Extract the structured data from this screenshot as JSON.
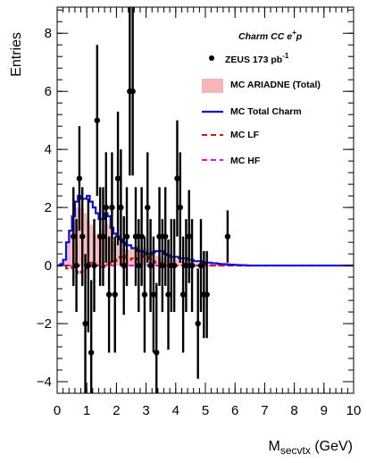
{
  "chart_data": {
    "type": "histogram",
    "xlabel": "M",
    "xlabel_sub": "secvtx",
    "xlabel_unit": " (GeV)",
    "ylabel": "Entries",
    "xlim": [
      0,
      10
    ],
    "ylim": [
      -4.4,
      8.9
    ],
    "x_ticks": [
      0,
      1,
      2,
      3,
      4,
      5,
      6,
      7,
      8,
      9,
      10
    ],
    "y_ticks": [
      -4,
      -2,
      0,
      2,
      4,
      6,
      8
    ],
    "legend_title": "Charm CC e",
    "legend_title_sup": "+",
    "legend_title_end": "p",
    "legend_placement": "top-right",
    "bin_width": 0.1,
    "data_label": "ZEUS 173 pb",
    "data_label_sup": "-1",
    "data_points": [
      {
        "x": 0.55,
        "y": 1,
        "err": 1.7
      },
      {
        "x": 0.65,
        "y": 0,
        "err": 1.6
      },
      {
        "x": 0.75,
        "y": 3,
        "err": 1.8
      },
      {
        "x": 0.85,
        "y": 1,
        "err": 1.7
      },
      {
        "x": 0.95,
        "y": -2,
        "err": 2.4
      },
      {
        "x": 1.05,
        "y": 0,
        "err": 2.3
      },
      {
        "x": 1.15,
        "y": -3,
        "err": 2.5
      },
      {
        "x": 1.25,
        "y": 0,
        "err": 1.6
      },
      {
        "x": 1.35,
        "y": 5,
        "err": 2.6
      },
      {
        "x": 1.45,
        "y": 1,
        "err": 1.7
      },
      {
        "x": 1.55,
        "y": 1,
        "err": 1.7
      },
      {
        "x": 1.65,
        "y": 2,
        "err": 1.9
      },
      {
        "x": 1.75,
        "y": -1,
        "err": 2.0
      },
      {
        "x": 1.85,
        "y": 2,
        "err": 1.9
      },
      {
        "x": 1.95,
        "y": -1,
        "err": 2.0
      },
      {
        "x": 2.05,
        "y": 3,
        "err": 2.3
      },
      {
        "x": 2.15,
        "y": 2,
        "err": 2.0
      },
      {
        "x": 2.25,
        "y": 0,
        "err": 1.7
      },
      {
        "x": 2.35,
        "y": 1,
        "err": 1.7
      },
      {
        "x": 2.45,
        "y": 6,
        "err": 2.9
      },
      {
        "x": 2.55,
        "y": 6,
        "err": 2.9
      },
      {
        "x": 2.65,
        "y": 1,
        "err": 1.7
      },
      {
        "x": 2.75,
        "y": 0,
        "err": 1.6
      },
      {
        "x": 2.85,
        "y": 1,
        "err": 1.7
      },
      {
        "x": 2.95,
        "y": -1,
        "err": 2.0
      },
      {
        "x": 3.05,
        "y": 2,
        "err": 1.9
      },
      {
        "x": 3.15,
        "y": 0,
        "err": 1.6
      },
      {
        "x": 3.25,
        "y": -1,
        "err": 2.0
      },
      {
        "x": 3.35,
        "y": -3,
        "err": 2.4
      },
      {
        "x": 3.45,
        "y": 1,
        "err": 1.7
      },
      {
        "x": 3.55,
        "y": 0,
        "err": 1.6
      },
      {
        "x": 3.65,
        "y": 1,
        "err": 1.7
      },
      {
        "x": 3.75,
        "y": -1,
        "err": 1.9
      },
      {
        "x": 3.85,
        "y": 0,
        "err": 1.6
      },
      {
        "x": 3.95,
        "y": 0,
        "err": 1.6
      },
      {
        "x": 4.05,
        "y": 3,
        "err": 2.0
      },
      {
        "x": 4.15,
        "y": 2,
        "err": 1.9
      },
      {
        "x": 4.25,
        "y": -1,
        "err": 2.0
      },
      {
        "x": 4.35,
        "y": 0,
        "err": 1.6
      },
      {
        "x": 4.45,
        "y": 1,
        "err": 1.6
      },
      {
        "x": 4.55,
        "y": 0,
        "err": 1.6
      },
      {
        "x": 4.75,
        "y": -2,
        "err": 1.9
      },
      {
        "x": 4.85,
        "y": 0,
        "err": 1.6
      },
      {
        "x": 4.95,
        "y": -1,
        "err": 1.5
      },
      {
        "x": 5.05,
        "y": -1,
        "err": 1.5
      },
      {
        "x": 5.75,
        "y": 1,
        "err": 0.9
      }
    ],
    "series": [
      {
        "name": "MC ARIADNE (Total)",
        "color": "#f7b5b8",
        "values": [
          0.05,
          0.1,
          0.2,
          0.8,
          1.2,
          1.5,
          2.0,
          2.1,
          2.0,
          1.8,
          1.6,
          1.4,
          1.2,
          1.1,
          1.0,
          1.3,
          1.5,
          1.4,
          1.0,
          0.8,
          0.7,
          0.6,
          0.55,
          0.5,
          0.55,
          0.6,
          0.65,
          0.7,
          0.65,
          0.6,
          0.6,
          0.5,
          0.4,
          0.35,
          0.3,
          0.3,
          0.28,
          0.26,
          0.25,
          0.24,
          0.22,
          0.2,
          0.18,
          0.16,
          0.14,
          0.12,
          0.1,
          0.08,
          0.06,
          0.05,
          0.04,
          0.03,
          0.02,
          0.02,
          0.01,
          0.01,
          0.01,
          0.01,
          0.01,
          0.01,
          0,
          0,
          0,
          0,
          0,
          0,
          0,
          0,
          0,
          0,
          0,
          0,
          0,
          0,
          0,
          0,
          0,
          0,
          0,
          0,
          0,
          0,
          0,
          0,
          0,
          0,
          0,
          0,
          0,
          0,
          0,
          0,
          0,
          0,
          0,
          0,
          0,
          0,
          0,
          0
        ]
      },
      {
        "name": "MC Total Charm",
        "color": "#1010e0",
        "values": [
          0,
          0.05,
          0.2,
          0.8,
          1.2,
          1.7,
          2.2,
          2.4,
          2.3,
          2.3,
          2.4,
          2.2,
          2.0,
          1.8,
          1.6,
          1.6,
          1.8,
          1.7,
          1.3,
          1.1,
          1.0,
          0.9,
          0.8,
          0.7,
          0.7,
          0.6,
          0.6,
          0.5,
          0.5,
          0.45,
          0.4,
          0.4,
          0.45,
          0.5,
          0.5,
          0.5,
          0.4,
          0.35,
          0.3,
          0.3,
          0.3,
          0.25,
          0.25,
          0.25,
          0.2,
          0.2,
          0.15,
          0.15,
          0.15,
          0.12,
          0.1,
          0.1,
          0.08,
          0.08,
          0.06,
          0.05,
          0.05,
          0.04,
          0.03,
          0.03,
          0.02,
          0.02,
          0.01,
          0.01,
          0,
          0,
          0,
          0,
          0,
          0,
          0,
          0,
          0,
          0,
          0,
          0,
          0,
          0,
          0,
          0,
          0,
          0,
          0,
          0,
          0,
          0,
          0,
          0,
          0,
          0,
          0,
          0,
          0,
          0,
          0,
          0,
          0,
          0,
          0,
          0
        ]
      },
      {
        "name": "MC LF",
        "color": "#e01010",
        "values": [
          0,
          0,
          0,
          -0.1,
          -0.05,
          -0.1,
          -0.2,
          -0.3,
          -0.2,
          -0.1,
          0,
          0.1,
          0.05,
          0,
          0,
          -0.05,
          0,
          0.05,
          0.1,
          0.15,
          0.2,
          0.3,
          0.35,
          0.25,
          0.2,
          0.25,
          0.2,
          0.25,
          0.3,
          0.35,
          0.3,
          0.25,
          0.15,
          0.1,
          0.1,
          0.05,
          0,
          0,
          0.05,
          0.05,
          0,
          0,
          0,
          0.05,
          0.05,
          0,
          0,
          0,
          0.05,
          0.05,
          0,
          0,
          0,
          0,
          0,
          0,
          0,
          0,
          0,
          0,
          0,
          0,
          0,
          0,
          0,
          0,
          0,
          0,
          0,
          0,
          0,
          0,
          0,
          0,
          0,
          0,
          0,
          0,
          0,
          0,
          0,
          0,
          0,
          0,
          0,
          0,
          0,
          0,
          0,
          0,
          0,
          0,
          0,
          0,
          0,
          0,
          0,
          0,
          0,
          0
        ]
      },
      {
        "name": "MC HF",
        "color": "#e010e0",
        "values": [
          0,
          0,
          0,
          0,
          0,
          0,
          0,
          0,
          0,
          0,
          0,
          0,
          0,
          0,
          0,
          0,
          0,
          0,
          0,
          0,
          0,
          0,
          0,
          0,
          0,
          0,
          0,
          0,
          0,
          0,
          0,
          0,
          0,
          0,
          0,
          0,
          0,
          0,
          0,
          0,
          0,
          0,
          0,
          0,
          0,
          0,
          0,
          0,
          0,
          0,
          0,
          0,
          0,
          0,
          0,
          0,
          0,
          0,
          0,
          0,
          0,
          0,
          0,
          0,
          0,
          0,
          0,
          0,
          0,
          0,
          0,
          0,
          0,
          0,
          0,
          0,
          0,
          0,
          0,
          0,
          0,
          0,
          0,
          0,
          0,
          0,
          0,
          0,
          0,
          0,
          0,
          0,
          0,
          0,
          0,
          0,
          0,
          0,
          0,
          0
        ]
      }
    ]
  }
}
